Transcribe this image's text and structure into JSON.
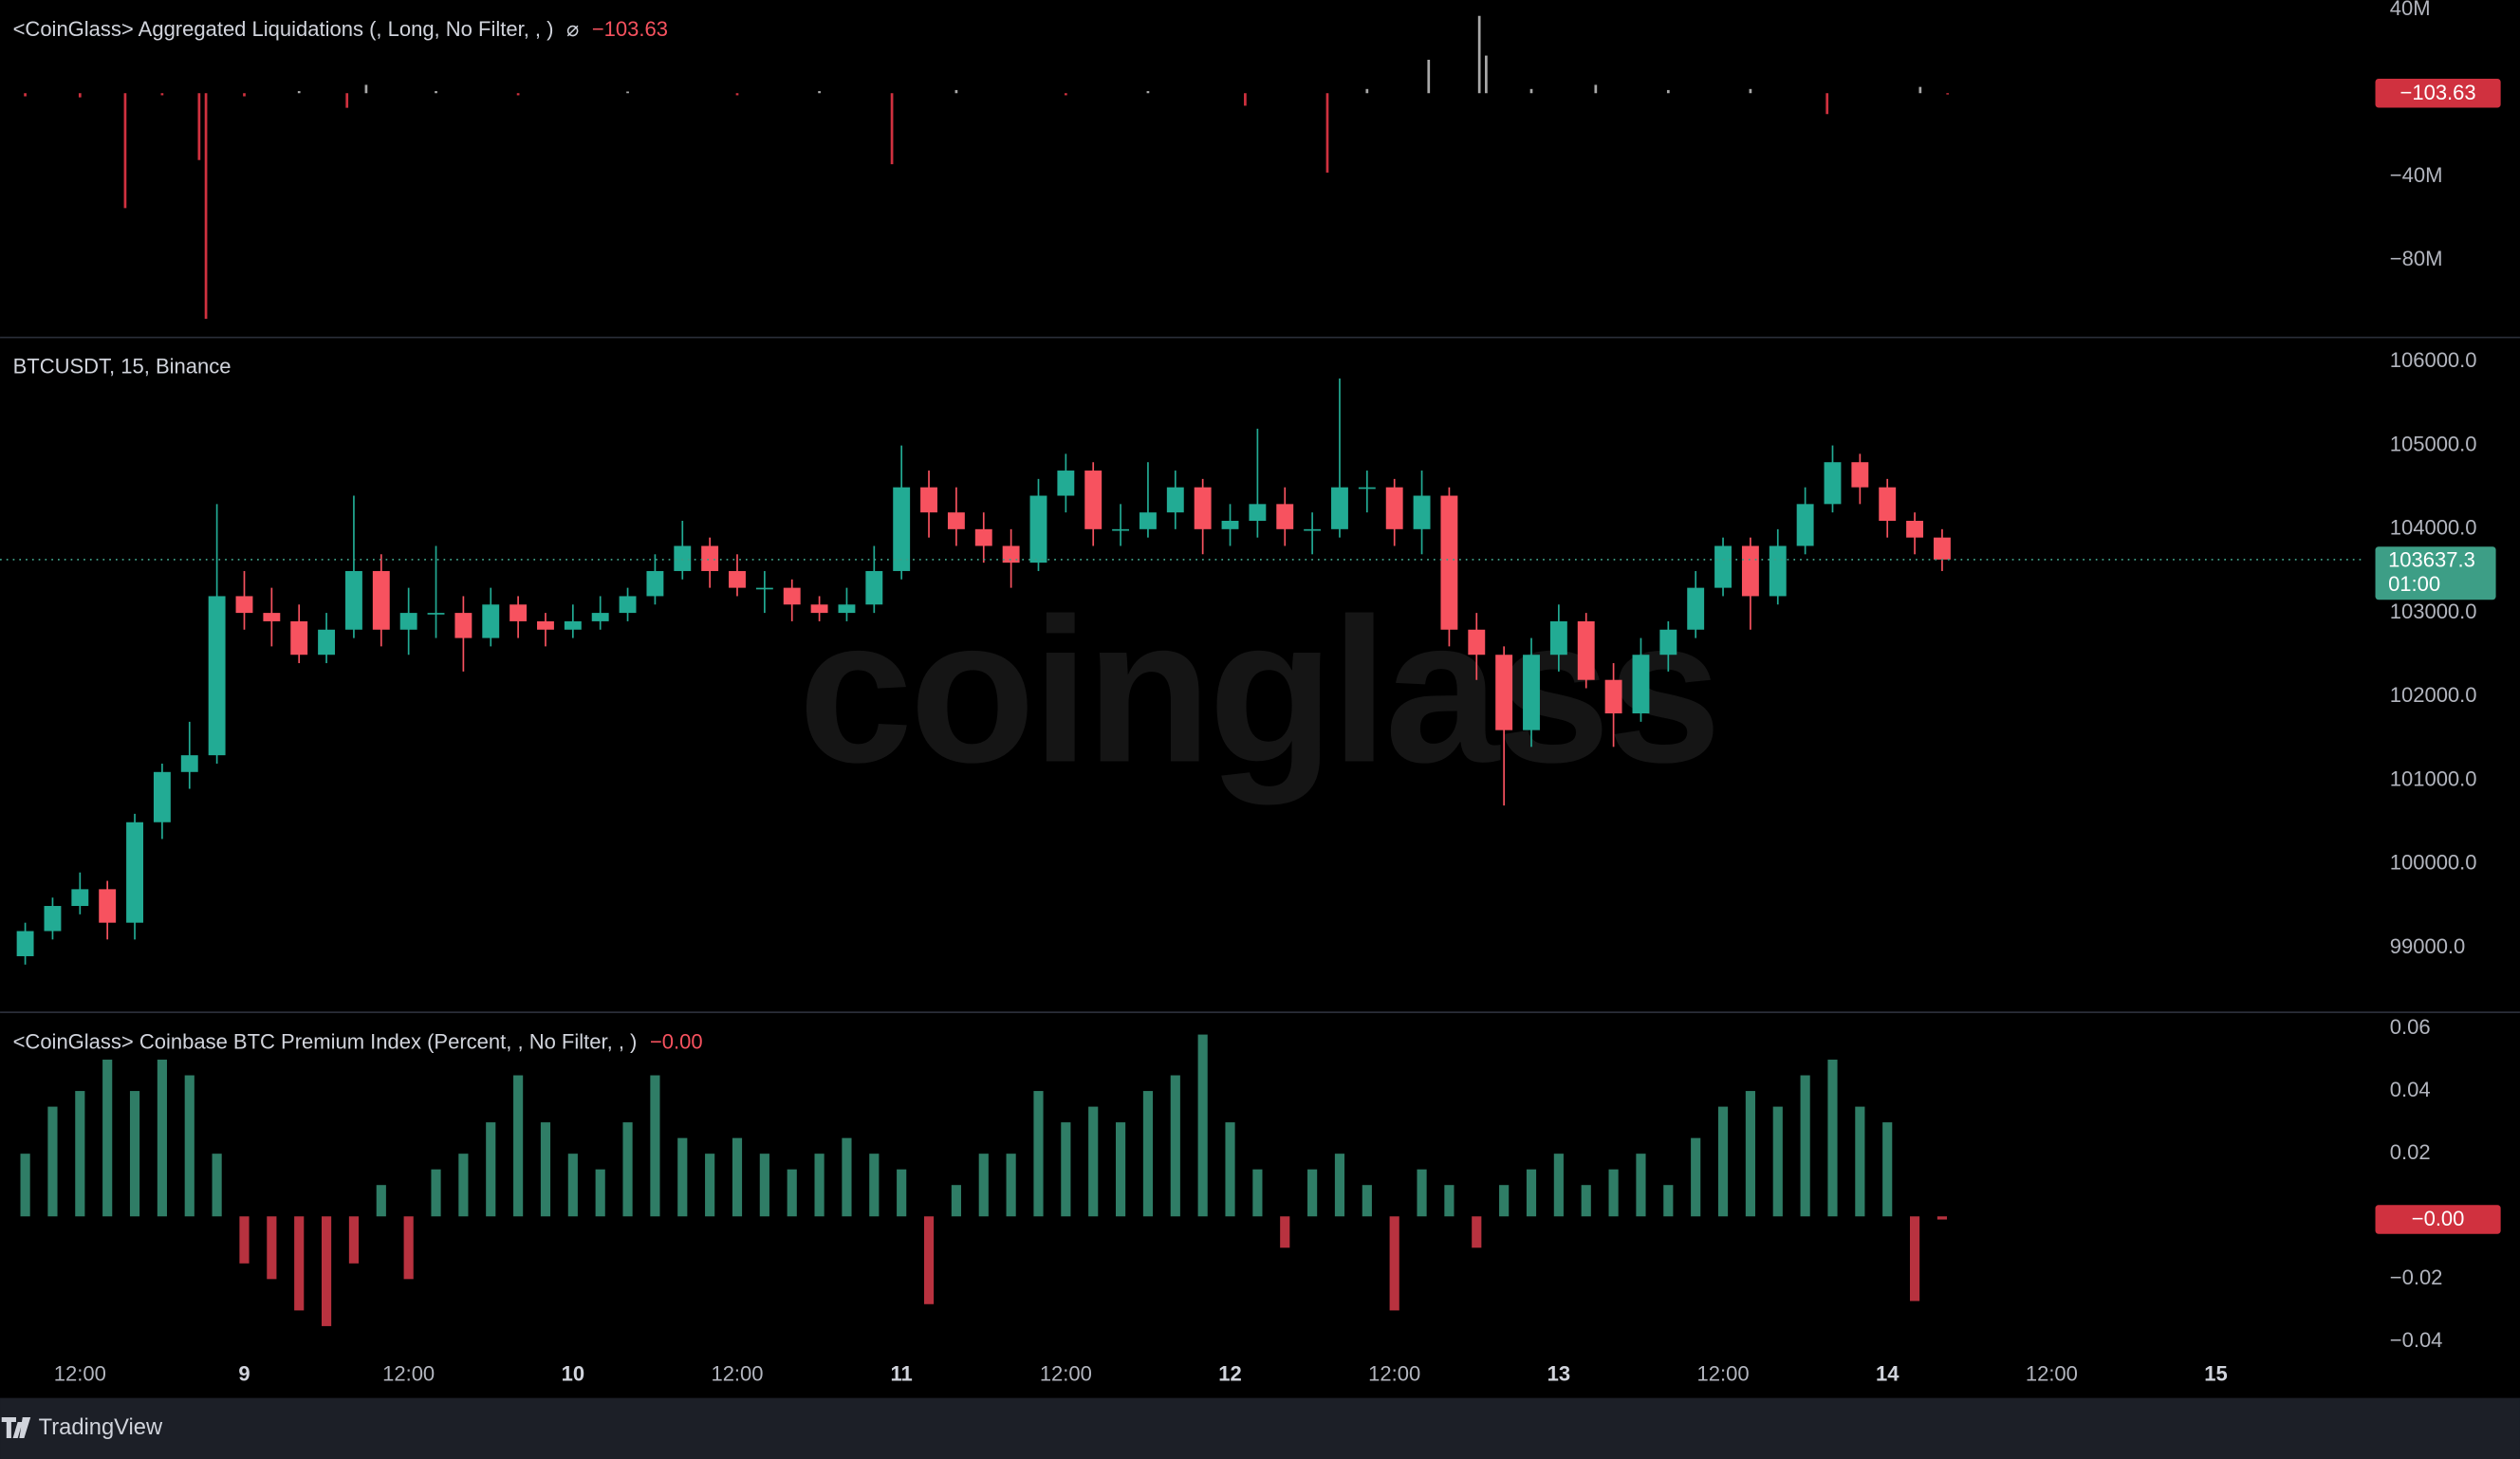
{
  "chart_data": [
    {
      "type": "bar",
      "title": "<CoinGlass> Aggregated Liquidations  (, Long, No Filter, , )",
      "title_icon": "⌀",
      "x": [
        8,
        12,
        15.3,
        18,
        20.7,
        21.2,
        24,
        28,
        31.5,
        32.9,
        38,
        44,
        52,
        60,
        66,
        71.3,
        76,
        84,
        90,
        97.1,
        103.1,
        106,
        110.5,
        114.2,
        114.7,
        118,
        122.7,
        128,
        134,
        139.6,
        146.4,
        148.4
      ],
      "values": [
        -1500000,
        -2000000,
        -55000000,
        -1000000,
        -32000000,
        -108000000,
        -1500000,
        1000000,
        -7000000,
        4000000,
        1000000,
        -1000000,
        800000,
        -1000000,
        1000000,
        -34000000,
        1500000,
        -1000000,
        1000000,
        -6000000,
        -38000000,
        2000000,
        16000000,
        37000000,
        18000000,
        2000000,
        4000000,
        1500000,
        2000000,
        -10000000,
        3000000,
        -103.63
      ],
      "colors": {
        "positive": "#a8a8a8",
        "negative": "#d0313f"
      },
      "ylim": [
        -116900000,
        44600000
      ],
      "yticks": [
        {
          "value": 40000000,
          "label": "40M"
        },
        {
          "value": -40000000,
          "label": "−40M"
        },
        {
          "value": -80000000,
          "label": "−80M"
        }
      ],
      "last_value": {
        "value": -103.63,
        "label": "−103.63"
      }
    },
    {
      "type": "candlestick",
      "title": "BTCUSDT, 15, Binance",
      "watermark": "coinglass",
      "x": [
        8,
        10,
        12,
        14,
        16,
        18,
        20,
        22,
        24,
        26,
        28,
        30,
        32,
        34,
        36,
        38,
        40,
        42,
        44,
        46,
        48,
        50,
        52,
        54,
        56,
        58,
        60,
        62,
        64,
        66,
        68,
        70,
        72,
        74,
        76,
        78,
        80,
        82,
        84,
        86,
        88,
        90,
        92,
        94,
        96,
        98,
        100,
        102,
        104,
        106,
        108,
        110,
        112,
        114,
        116,
        118,
        120,
        122,
        124,
        126,
        128,
        130,
        132,
        134,
        136,
        138,
        140,
        142,
        144,
        146,
        148
      ],
      "open": [
        98900,
        99200,
        99500,
        99700,
        99300,
        100500,
        101100,
        101300,
        103200,
        103000,
        102900,
        102500,
        102800,
        103500,
        102800,
        103000,
        103000,
        102700,
        103100,
        102900,
        102800,
        102900,
        103000,
        103200,
        103500,
        103800,
        103500,
        103300,
        103300,
        103100,
        103000,
        103100,
        103500,
        104500,
        104200,
        104000,
        103800,
        103600,
        104400,
        104700,
        104000,
        104000,
        104200,
        104500,
        104000,
        104100,
        104300,
        104000,
        104000,
        104500,
        104500,
        104000,
        104400,
        102800,
        102500,
        101600,
        102500,
        102900,
        102200,
        101800,
        102500,
        102800,
        103300,
        103800,
        103200,
        103800,
        104300,
        104800,
        104500,
        104100,
        103900
      ],
      "high": [
        99300,
        99600,
        99900,
        99800,
        100600,
        101200,
        101700,
        104300,
        103500,
        103300,
        103100,
        103000,
        104400,
        103700,
        103300,
        103800,
        103200,
        103300,
        103200,
        103000,
        103100,
        103200,
        103300,
        103700,
        104100,
        103900,
        103700,
        103500,
        103400,
        103200,
        103300,
        103800,
        105000,
        104700,
        104500,
        104200,
        104000,
        104600,
        104900,
        104800,
        104300,
        104800,
        104700,
        104600,
        104300,
        105200,
        104500,
        104200,
        105800,
        104700,
        104600,
        104700,
        104500,
        103000,
        102600,
        102700,
        103100,
        103000,
        102400,
        102700,
        102900,
        103500,
        103900,
        103900,
        104000,
        104500,
        105000,
        104900,
        104600,
        104200,
        104000
      ],
      "low": [
        98800,
        99100,
        99400,
        99100,
        99100,
        100300,
        100900,
        101200,
        102800,
        102600,
        102400,
        102400,
        102700,
        102600,
        102500,
        102700,
        102300,
        102600,
        102700,
        102600,
        102700,
        102800,
        102900,
        103100,
        103400,
        103300,
        103200,
        103000,
        102900,
        102900,
        102900,
        103000,
        103400,
        103900,
        103800,
        103600,
        103300,
        103500,
        104200,
        103800,
        103800,
        103900,
        104000,
        103700,
        103800,
        103900,
        103800,
        103700,
        103900,
        104200,
        103800,
        103700,
        102600,
        102200,
        100700,
        101400,
        102300,
        102100,
        101400,
        101700,
        102300,
        102700,
        103200,
        102800,
        103100,
        103700,
        104200,
        104300,
        103900,
        103700,
        103500
      ],
      "close": [
        99200,
        99500,
        99700,
        99300,
        100500,
        101100,
        101300,
        103200,
        103000,
        102900,
        102500,
        102800,
        103500,
        102800,
        103000,
        103000,
        102700,
        103100,
        102900,
        102800,
        102900,
        103000,
        103200,
        103500,
        103800,
        103500,
        103300,
        103300,
        103100,
        103000,
        103100,
        103500,
        104500,
        104200,
        104000,
        103800,
        103600,
        104400,
        104700,
        104000,
        104000,
        104200,
        104500,
        104000,
        104100,
        104300,
        104000,
        104000,
        104500,
        104500,
        104000,
        104400,
        102800,
        102500,
        101600,
        102500,
        102900,
        102200,
        101800,
        102500,
        102800,
        103300,
        103800,
        103200,
        103800,
        104300,
        104800,
        104500,
        104100,
        103900,
        103637.3
      ],
      "up_color": "#22ab94",
      "down_color": "#f7525f",
      "badge_color": "#3d9e86",
      "ylim": [
        98230,
        106290
      ],
      "yticks": [
        {
          "value": 106000,
          "label": "106000.0"
        },
        {
          "value": 105000,
          "label": "105000.0"
        },
        {
          "value": 104000,
          "label": "104000.0"
        },
        {
          "value": 103000,
          "label": "103000.0"
        },
        {
          "value": 102000,
          "label": "102000.0"
        },
        {
          "value": 101000,
          "label": "101000.0"
        },
        {
          "value": 100000,
          "label": "100000.0"
        },
        {
          "value": 99000,
          "label": "99000.0"
        }
      ],
      "last_price": {
        "value": 103637.3,
        "label": "103637.3"
      },
      "countdown": "01:00"
    },
    {
      "type": "bar",
      "title": "<CoinGlass> Coinbase BTC Premium Index (Percent, , No Filter, , )",
      "x": [
        8,
        10,
        12,
        14,
        16,
        18,
        20,
        22,
        24,
        26,
        28,
        30,
        32,
        34,
        36,
        38,
        40,
        42,
        44,
        46,
        48,
        50,
        52,
        54,
        56,
        58,
        60,
        62,
        64,
        66,
        68,
        70,
        72,
        74,
        76,
        78,
        80,
        82,
        84,
        86,
        88,
        90,
        92,
        94,
        96,
        98,
        100,
        102,
        104,
        106,
        108,
        110,
        112,
        114,
        116,
        118,
        120,
        122,
        124,
        126,
        128,
        130,
        132,
        134,
        136,
        138,
        140,
        142,
        144,
        146,
        148
      ],
      "values": [
        0.02,
        0.035,
        0.04,
        0.05,
        0.04,
        0.05,
        0.045,
        0.02,
        -0.015,
        -0.02,
        -0.03,
        -0.035,
        -0.015,
        0.01,
        -0.02,
        0.015,
        0.02,
        0.03,
        0.045,
        0.03,
        0.02,
        0.015,
        0.03,
        0.045,
        0.025,
        0.02,
        0.025,
        0.02,
        0.015,
        0.02,
        0.025,
        0.02,
        0.015,
        -0.028,
        0.01,
        0.02,
        0.02,
        0.04,
        0.03,
        0.035,
        0.03,
        0.04,
        0.045,
        0.058,
        0.03,
        0.015,
        -0.01,
        0.015,
        0.02,
        0.01,
        -0.03,
        0.015,
        0.01,
        -0.01,
        0.01,
        0.015,
        0.02,
        0.01,
        0.015,
        0.02,
        0.01,
        0.025,
        0.035,
        0.04,
        0.035,
        0.045,
        0.05,
        0.035,
        0.03,
        -0.027,
        -0.001
      ],
      "colors": {
        "positive": "#2f7d66",
        "negative": "#b8323f"
      },
      "ylim": [
        -0.0451,
        0.0651
      ],
      "yticks": [
        0.06,
        0.04,
        0.02,
        {
          "value": -0.02,
          "label": "−0.02"
        },
        {
          "value": -0.04,
          "label": "−0.04"
        }
      ],
      "last_value": {
        "value": -0.001,
        "label": "−0.00"
      },
      "xlim": [
        6.16,
        178.7
      ],
      "xticks": [
        {
          "value": 12,
          "label": "12:00"
        },
        {
          "value": 24,
          "label": "9"
        },
        {
          "value": 36,
          "label": "12:00"
        },
        {
          "value": 48,
          "label": "10"
        },
        {
          "value": 60,
          "label": "12:00"
        },
        {
          "value": 72,
          "label": "11"
        },
        {
          "value": 84,
          "label": "12:00"
        },
        {
          "value": 96,
          "label": "12"
        },
        {
          "value": 108,
          "label": "12:00"
        },
        {
          "value": 120,
          "label": "13"
        },
        {
          "value": 132,
          "label": "12:00"
        },
        {
          "value": 144,
          "label": "14"
        },
        {
          "value": 156,
          "label": "12:00"
        },
        {
          "value": 168,
          "label": "15"
        }
      ]
    }
  ],
  "footer": {
    "brand": "TradingView"
  }
}
